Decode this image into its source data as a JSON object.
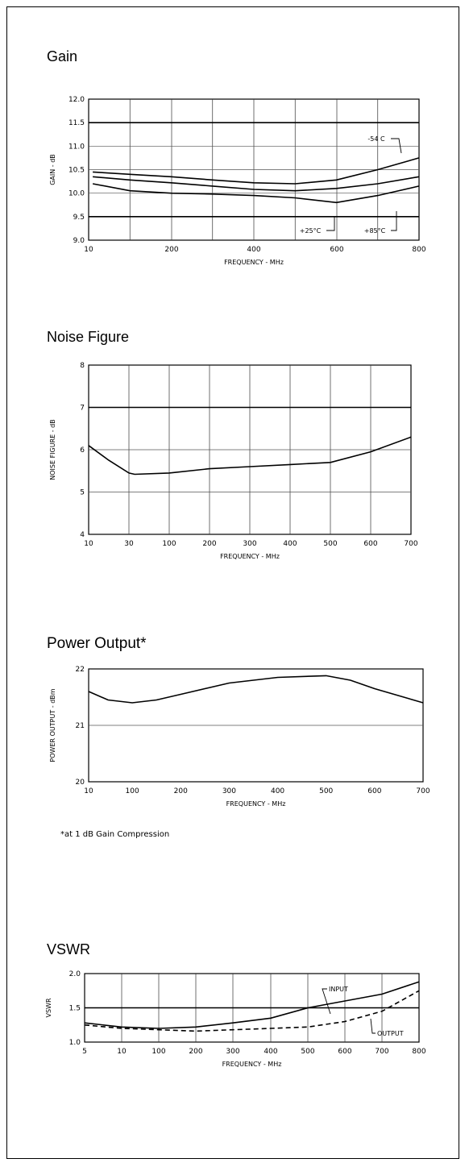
{
  "chart_data": [
    {
      "type": "line",
      "title": "Gain",
      "xlabel": "FREQUENCY - MHz",
      "ylabel": "GAIN - dB",
      "xticks": [
        "10",
        "200",
        "400",
        "600",
        "800"
      ],
      "yticks": [
        "12.0",
        "11.5",
        "11.0",
        "10.5",
        "10.0",
        "9.5",
        "9.0"
      ],
      "xlim": [
        0,
        800
      ],
      "ylim": [
        9.0,
        12.0
      ],
      "grid": true,
      "series": [
        {
          "name": "-54 C",
          "x": [
            10,
            100,
            200,
            300,
            400,
            500,
            600,
            700,
            800
          ],
          "y": [
            10.45,
            10.4,
            10.35,
            10.28,
            10.22,
            10.2,
            10.28,
            10.5,
            10.75
          ]
        },
        {
          "name": "+25°C",
          "x": [
            10,
            100,
            200,
            300,
            400,
            500,
            600,
            700,
            800
          ],
          "y": [
            10.35,
            10.28,
            10.22,
            10.15,
            10.08,
            10.05,
            10.1,
            10.2,
            10.35
          ]
        },
        {
          "name": "+85°C",
          "x": [
            10,
            100,
            200,
            300,
            400,
            500,
            600,
            700,
            800
          ],
          "y": [
            10.2,
            10.05,
            10.0,
            9.98,
            9.95,
            9.9,
            9.8,
            9.95,
            10.15
          ]
        }
      ],
      "annotations": [
        "-54 C",
        "+25°C",
        "+85°C"
      ]
    },
    {
      "type": "line",
      "title": "Noise Figure",
      "xlabel": "FREQUENCY - MHz",
      "ylabel": "NOISE FIGURE - dB",
      "xticks": [
        "10",
        "30",
        "100",
        "200",
        "300",
        "400",
        "500",
        "600",
        "700"
      ],
      "yticks": [
        "8",
        "7",
        "6",
        "5",
        "4"
      ],
      "ylim": [
        4,
        8
      ],
      "grid": true,
      "series": [
        {
          "x": [
            "10",
            "20",
            "30",
            "40",
            "100",
            "200",
            "300",
            "400",
            "500",
            "600",
            "700"
          ],
          "y": [
            6.1,
            5.75,
            5.45,
            5.42,
            5.45,
            5.55,
            5.6,
            5.65,
            5.7,
            5.95,
            6.3
          ]
        }
      ]
    },
    {
      "type": "line",
      "title": "Power Output*",
      "xlabel": "FREQUENCY - MHz",
      "ylabel": "POWER OUTPUT - dBm",
      "xticks": [
        "10",
        "100",
        "200",
        "300",
        "400",
        "500",
        "600",
        "700"
      ],
      "yticks": [
        "22",
        "21",
        "20"
      ],
      "xlim": [
        10,
        700
      ],
      "ylim": [
        20,
        22
      ],
      "grid": false,
      "series": [
        {
          "x": [
            10,
            50,
            100,
            150,
            200,
            300,
            400,
            500,
            550,
            600,
            700
          ],
          "y": [
            21.6,
            21.45,
            21.4,
            21.45,
            21.55,
            21.75,
            21.85,
            21.88,
            21.8,
            21.65,
            21.4
          ]
        }
      ],
      "footnote": "*at 1 dB Gain Compression"
    },
    {
      "type": "line",
      "title": "VSWR",
      "xlabel": "FREQUENCY - MHz",
      "ylabel": "VSWR",
      "xticks": [
        "5",
        "10",
        "100",
        "200",
        "300",
        "400",
        "500",
        "600",
        "700",
        "800"
      ],
      "yticks": [
        "2.0",
        "1.5",
        "1.0"
      ],
      "ylim": [
        1.0,
        2.0
      ],
      "grid": true,
      "series": [
        {
          "name": "INPUT",
          "x": [
            "5",
            "10",
            "100",
            "200",
            "300",
            "400",
            "500",
            "600",
            "700",
            "800"
          ],
          "y": [
            1.28,
            1.22,
            1.2,
            1.22,
            1.28,
            1.35,
            1.5,
            1.6,
            1.7,
            1.88
          ]
        },
        {
          "name": "OUTPUT",
          "x": [
            "5",
            "10",
            "100",
            "200",
            "300",
            "400",
            "500",
            "600",
            "700",
            "800"
          ],
          "y": [
            1.25,
            1.2,
            1.18,
            1.16,
            1.18,
            1.2,
            1.22,
            1.3,
            1.45,
            1.75
          ]
        }
      ],
      "annotations": [
        "INPUT",
        "OUTPUT"
      ]
    }
  ]
}
